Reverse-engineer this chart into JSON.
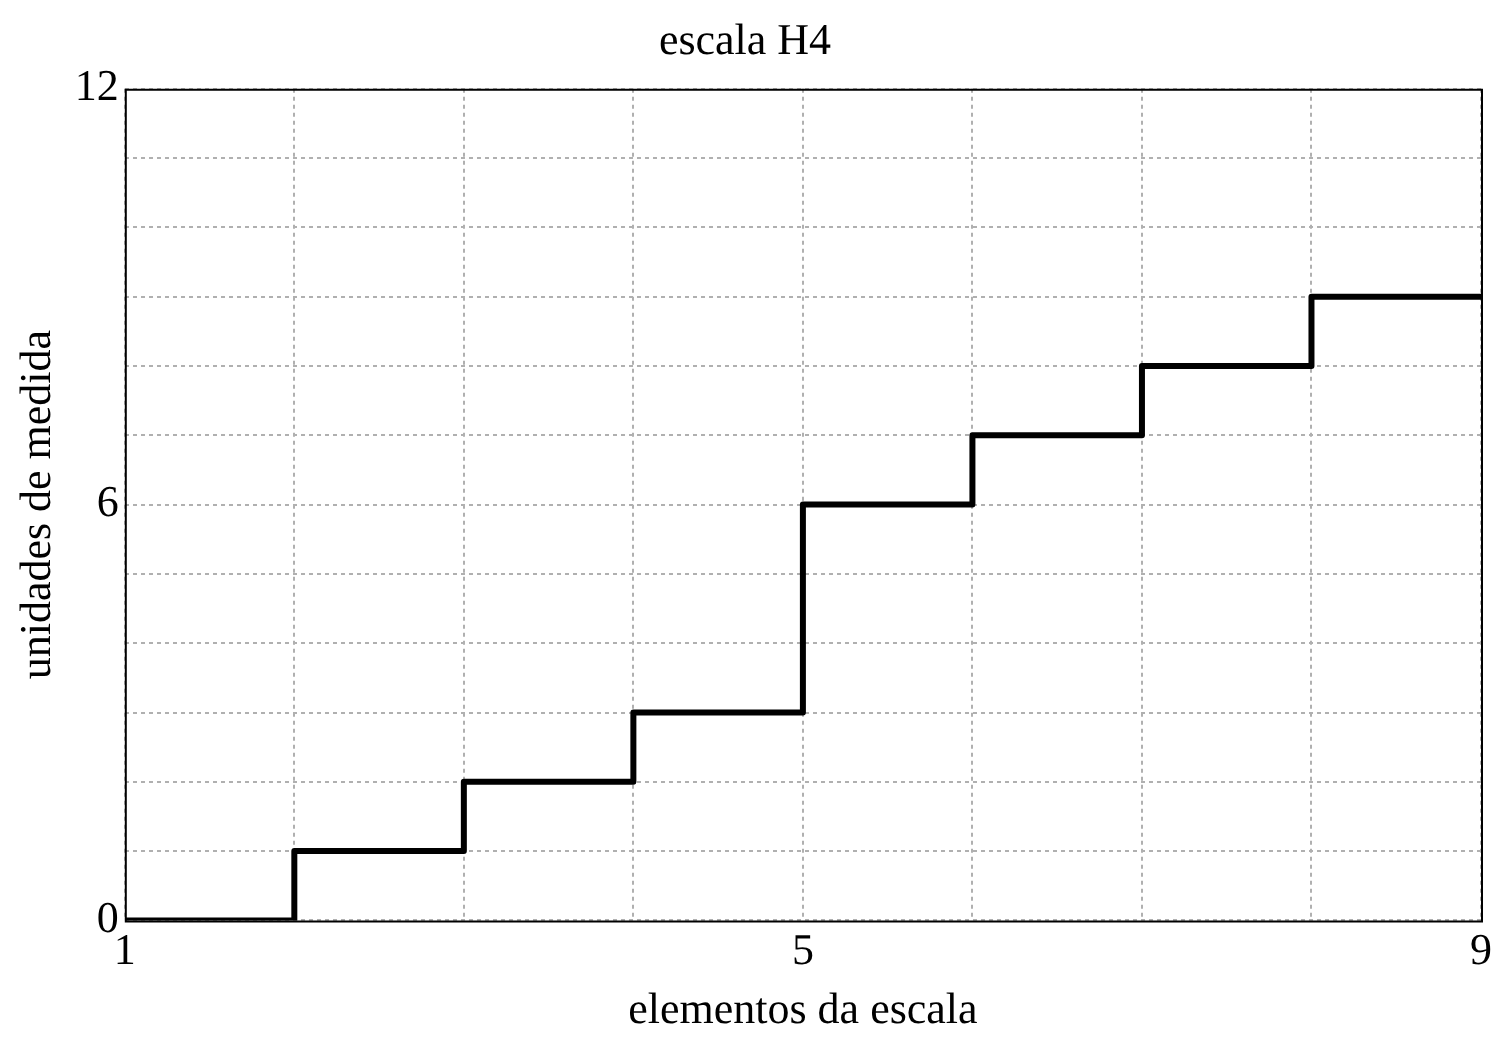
{
  "chart_data": {
    "type": "step",
    "title": "escala H4",
    "xlabel": "elementos da escala",
    "ylabel": "unidades de medida",
    "x": [
      1,
      2,
      3,
      4,
      5,
      6,
      7,
      8,
      9
    ],
    "series": [
      {
        "color": "#000000",
        "values": [
          0,
          1,
          2,
          3,
          6,
          7,
          8,
          9,
          9
        ]
      }
    ],
    "xlim": [
      1,
      9
    ],
    "xticks": [
      1,
      {
        "value": 2,
        "label": null
      },
      {
        "value": 3,
        "label": null
      },
      {
        "value": 4,
        "label": null
      },
      5,
      {
        "value": 6,
        "label": null
      },
      {
        "value": 7,
        "label": null
      },
      {
        "value": 8,
        "label": null
      },
      9
    ],
    "ylim": [
      0,
      12
    ],
    "yticks": [
      0,
      {
        "value": 1,
        "label": null
      },
      {
        "value": 2,
        "label": null
      },
      {
        "value": 3,
        "label": null
      },
      {
        "value": 4,
        "label": null
      },
      {
        "value": 5,
        "label": null
      },
      6,
      {
        "value": 7,
        "label": null
      },
      {
        "value": 8,
        "label": null
      },
      {
        "value": 9,
        "label": null
      },
      {
        "value": 10,
        "label": null
      },
      {
        "value": 11,
        "label": null
      },
      12
    ],
    "grid": true,
    "legend": false,
    "marker": "none",
    "line_style": "solid"
  }
}
